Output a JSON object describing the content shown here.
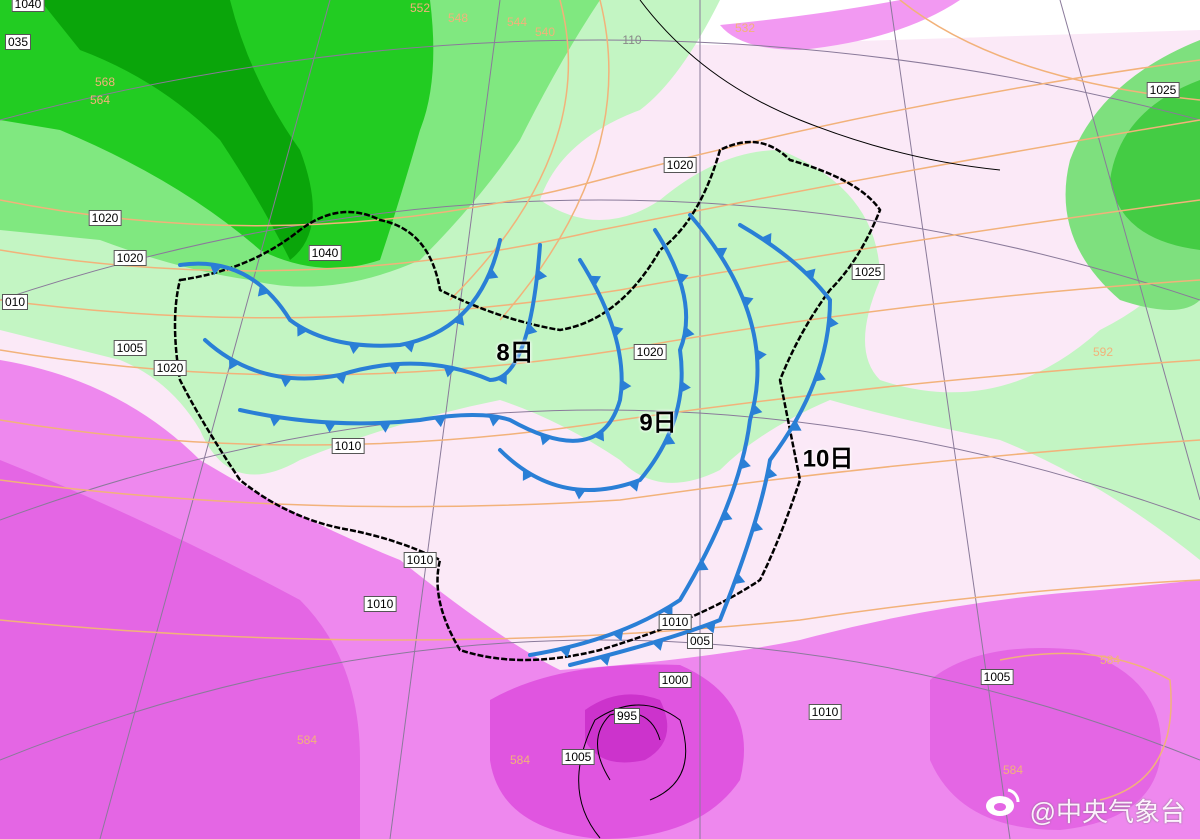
{
  "colors": {
    "front": "#2a7fd6",
    "high_dark": "#00b400",
    "high_mid": "#33dd33",
    "high_light": "#bff5bf",
    "low_light": "#ee88ee",
    "low_mid": "#e35ee3",
    "low_core": "#d23fd2",
    "background": "#fbe9f7",
    "height_contour": "#f2b27a",
    "border": "#000000"
  },
  "pressure_labels": [
    {
      "text": "1040",
      "id": "p1"
    },
    {
      "text": "035",
      "id": "p2"
    },
    {
      "text": "1020",
      "id": "p3"
    },
    {
      "text": "1020",
      "id": "p4"
    },
    {
      "text": "010",
      "id": "p5"
    },
    {
      "text": "1005",
      "id": "p6"
    },
    {
      "text": "1020",
      "id": "p7"
    },
    {
      "text": "1040",
      "id": "p8"
    },
    {
      "text": "1020",
      "id": "p9"
    },
    {
      "text": "1025",
      "id": "p10"
    },
    {
      "text": "1025",
      "id": "p11"
    },
    {
      "text": "1020",
      "id": "p12"
    },
    {
      "text": "1010",
      "id": "p13"
    },
    {
      "text": "1010",
      "id": "p14"
    },
    {
      "text": "1010",
      "id": "p15"
    },
    {
      "text": "1010",
      "id": "p16"
    },
    {
      "text": "005",
      "id": "p17"
    },
    {
      "text": "1000",
      "id": "p18"
    },
    {
      "text": "995",
      "id": "p19"
    },
    {
      "text": "1005",
      "id": "p20"
    },
    {
      "text": "1010",
      "id": "p21"
    },
    {
      "text": "1005",
      "id": "p22"
    }
  ],
  "height_labels": [
    "568",
    "564",
    "552",
    "548",
    "544",
    "540",
    "532",
    "110",
    "592",
    "584",
    "584",
    "584",
    "584"
  ],
  "front_labels": [
    "8日",
    "9日",
    "10日"
  ],
  "watermark": {
    "icon": "weibo-icon",
    "text": "@中央气象台"
  }
}
